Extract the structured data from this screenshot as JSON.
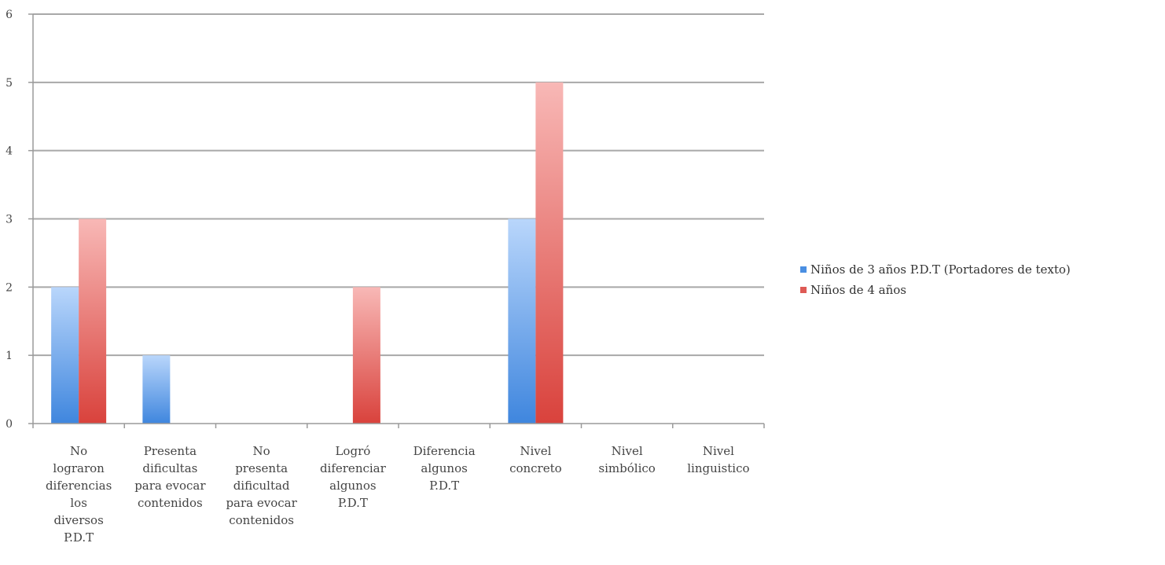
{
  "chart_data": {
    "type": "bar",
    "title": "",
    "xlabel": "",
    "ylabel": "",
    "ylim": [
      0,
      6
    ],
    "yticks": [
      0,
      1,
      2,
      3,
      4,
      5,
      6
    ],
    "grid": true,
    "legend_position": "right",
    "categories": [
      "No lograron diferencias los diversos P.D.T",
      "Presenta dificultas para evocar contenidos",
      "No presenta dificultad para evocar contenidos",
      "Logró diferenciar algunos P.D.T",
      "Diferencia algunos P.D.T",
      "Nivel concreto",
      "Nivel simbólico",
      "Nivel linguistico"
    ],
    "category_lines": [
      [
        "No",
        "lograron",
        "diferencias",
        "los",
        "diversos",
        "P.D.T"
      ],
      [
        "Presenta",
        "dificultas",
        "para evocar",
        "contenidos"
      ],
      [
        "No",
        "presenta",
        "dificultad",
        "para evocar",
        "contenidos"
      ],
      [
        "Logró",
        "diferenciar",
        "algunos",
        "P.D.T"
      ],
      [
        "Diferencia",
        "algunos",
        "P.D.T"
      ],
      [
        "Nivel",
        "concreto"
      ],
      [
        "Nivel",
        "simbólico"
      ],
      [
        "Nivel",
        "linguistico"
      ]
    ],
    "series": [
      {
        "name": "Niños de 3 años P.D.T (Portadores de texto)",
        "values": [
          2,
          1,
          0,
          0,
          0,
          3,
          0,
          0
        ],
        "color_top": "#b9d6fb",
        "color_bottom": "#3f86de"
      },
      {
        "name": "Niños de 4 años",
        "values": [
          3,
          0,
          0,
          2,
          0,
          5,
          0,
          0
        ],
        "color_top": "#f8b8b6",
        "color_bottom": "#d9423c"
      }
    ]
  }
}
